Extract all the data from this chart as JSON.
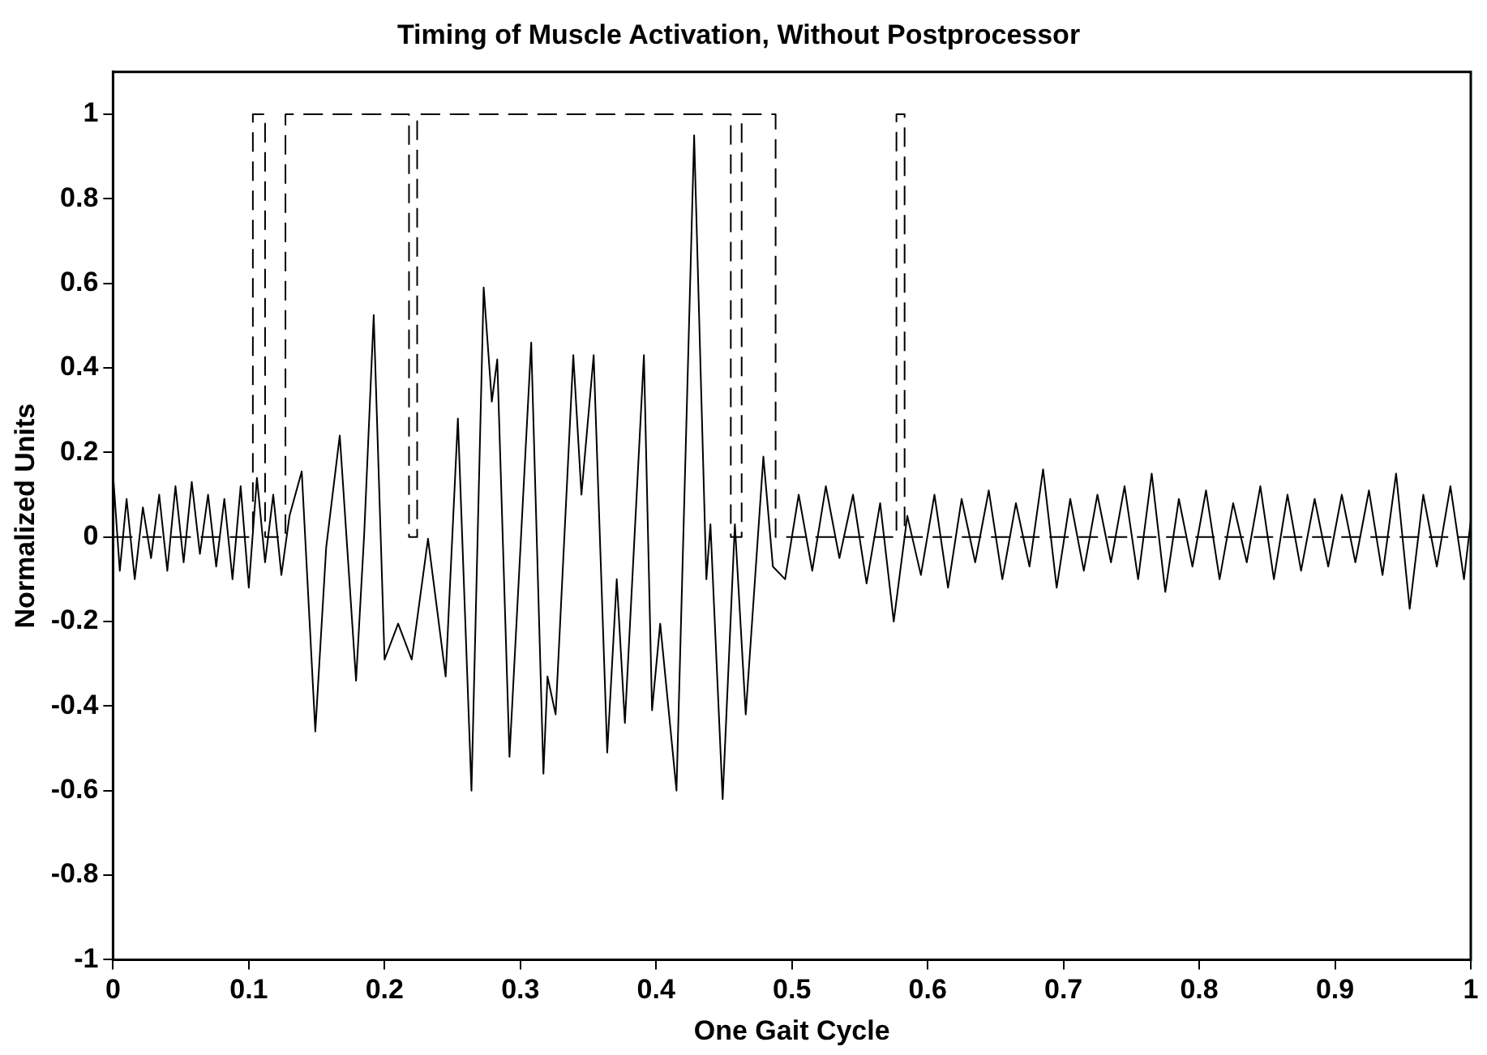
{
  "chart_data": {
    "type": "line",
    "title": "Timing of Muscle Activation, Without Postprocessor",
    "xlabel": "One Gait Cycle",
    "ylabel": "Normalized Units",
    "xlim": [
      0,
      1
    ],
    "ylim": [
      -1,
      1.1
    ],
    "xticks": [
      0,
      0.1,
      0.2,
      0.3,
      0.4,
      0.5,
      0.6,
      0.7,
      0.8,
      0.9,
      1
    ],
    "yticks": [
      -1,
      -0.8,
      -0.6,
      -0.4,
      -0.2,
      0,
      0.2,
      0.4,
      0.6,
      0.8,
      1
    ],
    "grid": false,
    "legend": false,
    "series": [
      {
        "type": "step",
        "color": "#000000",
        "line_style": "dashed",
        "x": [
          0,
          0.103,
          0.112,
          0.127,
          0.218,
          0.224,
          0.455,
          0.463,
          0.488,
          0.577,
          0.583,
          1
        ],
        "values": [
          0,
          1,
          0,
          1,
          0,
          1,
          0,
          1,
          0,
          1,
          0,
          0
        ]
      },
      {
        "type": "line",
        "color": "#000000",
        "line_style": "solid",
        "x": [
          0,
          0.005,
          0.01,
          0.016,
          0.022,
          0.028,
          0.034,
          0.04,
          0.046,
          0.052,
          0.058,
          0.064,
          0.07,
          0.076,
          0.082,
          0.088,
          0.094,
          0.1,
          0.106,
          0.112,
          0.118,
          0.124,
          0.13,
          0.139,
          0.149,
          0.157,
          0.167,
          0.179,
          0.185,
          0.192,
          0.2,
          0.21,
          0.22,
          0.232,
          0.245,
          0.254,
          0.264,
          0.273,
          0.279,
          0.283,
          0.292,
          0.308,
          0.317,
          0.32,
          0.326,
          0.339,
          0.345,
          0.354,
          0.364,
          0.371,
          0.377,
          0.391,
          0.397,
          0.403,
          0.415,
          0.428,
          0.437,
          0.44,
          0.449,
          0.458,
          0.466,
          0.479,
          0.486,
          0.495,
          0.505,
          0.515,
          0.525,
          0.535,
          0.545,
          0.555,
          0.565,
          0.575,
          0.585,
          0.595,
          0.605,
          0.615,
          0.625,
          0.635,
          0.645,
          0.655,
          0.665,
          0.675,
          0.685,
          0.695,
          0.705,
          0.715,
          0.725,
          0.735,
          0.745,
          0.755,
          0.765,
          0.775,
          0.785,
          0.795,
          0.805,
          0.815,
          0.825,
          0.835,
          0.845,
          0.855,
          0.865,
          0.875,
          0.885,
          0.895,
          0.905,
          0.915,
          0.925,
          0.935,
          0.945,
          0.955,
          0.965,
          0.975,
          0.985,
          0.995,
          1
        ],
        "values": [
          0.15,
          -0.08,
          0.09,
          -0.1,
          0.07,
          -0.05,
          0.1,
          -0.08,
          0.12,
          -0.06,
          0.13,
          -0.04,
          0.1,
          -0.07,
          0.09,
          -0.1,
          0.12,
          -0.12,
          0.14,
          -0.06,
          0.1,
          -0.09,
          0.05,
          0.155,
          -0.46,
          -0.025,
          0.24,
          -0.34,
          0.007,
          0.525,
          -0.29,
          -0.205,
          -0.29,
          -0.004,
          -0.33,
          0.28,
          -0.6,
          0.59,
          0.32,
          0.42,
          -0.52,
          0.46,
          -0.56,
          -0.33,
          -0.42,
          0.43,
          0.1,
          0.43,
          -0.51,
          -0.1,
          -0.44,
          0.43,
          -0.41,
          -0.205,
          -0.6,
          0.95,
          -0.1,
          0.03,
          -0.62,
          0.03,
          -0.42,
          0.19,
          -0.07,
          -0.1,
          0.1,
          -0.08,
          0.12,
          -0.05,
          0.1,
          -0.11,
          0.08,
          -0.2,
          0.05,
          -0.09,
          0.1,
          -0.12,
          0.09,
          -0.06,
          0.11,
          -0.1,
          0.08,
          -0.07,
          0.16,
          -0.12,
          0.09,
          -0.08,
          0.1,
          -0.06,
          0.12,
          -0.1,
          0.15,
          -0.13,
          0.09,
          -0.07,
          0.11,
          -0.1,
          0.08,
          -0.06,
          0.12,
          -0.1,
          0.1,
          -0.08,
          0.09,
          -0.07,
          0.1,
          -0.06,
          0.11,
          -0.09,
          0.15,
          -0.17,
          0.1,
          -0.07,
          0.12,
          -0.1,
          0.04
        ]
      }
    ]
  }
}
